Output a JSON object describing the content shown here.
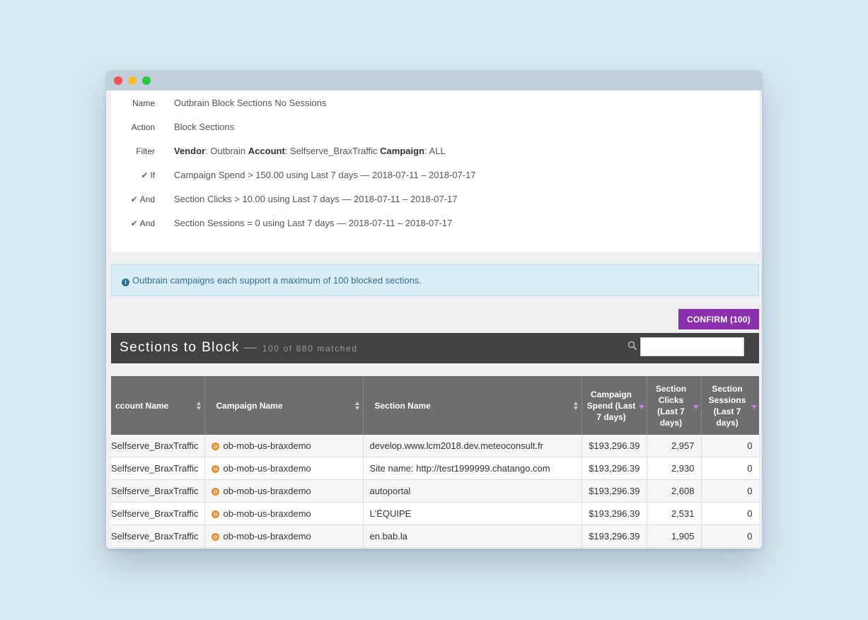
{
  "rule": {
    "name_label": "Name",
    "name_value": "Outbrain Block Sections No Sessions",
    "action_label": "Action",
    "action_value": "Block Sections",
    "filter_label": "Filter",
    "filter_vendor_key": "Vendor",
    "filter_vendor_val": ": Outbrain ",
    "filter_account_key": "Account",
    "filter_account_val": ": Selfserve_BraxTraffic ",
    "filter_campaign_key": "Campaign",
    "filter_campaign_val": ": ALL",
    "conditions": [
      {
        "label": "If",
        "text": "Campaign Spend > 150.00 using Last 7 days — 2018-07-11 – 2018-07-17"
      },
      {
        "label": "And",
        "text": "Section Clicks > 10.00 using Last 7 days — 2018-07-11 – 2018-07-17"
      },
      {
        "label": "And",
        "text": "Section Sessions = 0 using Last 7 days — 2018-07-11 – 2018-07-17"
      }
    ]
  },
  "alert": {
    "text": "Outbrain campaigns each support a maximum of 100 blocked sections."
  },
  "confirm_label": "CONFIRM (100)",
  "sections": {
    "title": "Sections to Block",
    "dash": " — ",
    "subtitle": "100 of 880 matched",
    "search_placeholder": ""
  },
  "table": {
    "headers": {
      "account": "ccount Name",
      "campaign": "Campaign Name",
      "section": "Section Name",
      "spend": "Campaign Spend (Last 7 days)",
      "clicks": "Section Clicks (Last 7 days)",
      "sessions": "Section Sessions (Last 7 days)"
    },
    "rows": [
      {
        "account": "Selfserve_BraxTraffic",
        "campaign": "ob-mob-us-braxdemo",
        "section": "develop.www.lcm2018.dev.meteoconsult.fr",
        "spend": "$193,296.39",
        "clicks": "2,957",
        "sessions": "0"
      },
      {
        "account": "Selfserve_BraxTraffic",
        "campaign": "ob-mob-us-braxdemo",
        "section": "Site name: http://test1999999.chatango.com",
        "spend": "$193,296.39",
        "clicks": "2,930",
        "sessions": "0"
      },
      {
        "account": "Selfserve_BraxTraffic",
        "campaign": "ob-mob-us-braxdemo",
        "section": "autoportal",
        "spend": "$193,296.39",
        "clicks": "2,608",
        "sessions": "0"
      },
      {
        "account": "Selfserve_BraxTraffic",
        "campaign": "ob-mob-us-braxdemo",
        "section": "L'ÉQUIPE",
        "spend": "$193,296.39",
        "clicks": "2,531",
        "sessions": "0"
      },
      {
        "account": "Selfserve_BraxTraffic",
        "campaign": "ob-mob-us-braxdemo",
        "section": "en.bab.la",
        "spend": "$193,296.39",
        "clicks": "1,905",
        "sessions": "0"
      }
    ]
  },
  "colors": {
    "accent": "#8a2fad",
    "check": "#3a8a3a",
    "outbrain_icon": "#f08a24"
  }
}
